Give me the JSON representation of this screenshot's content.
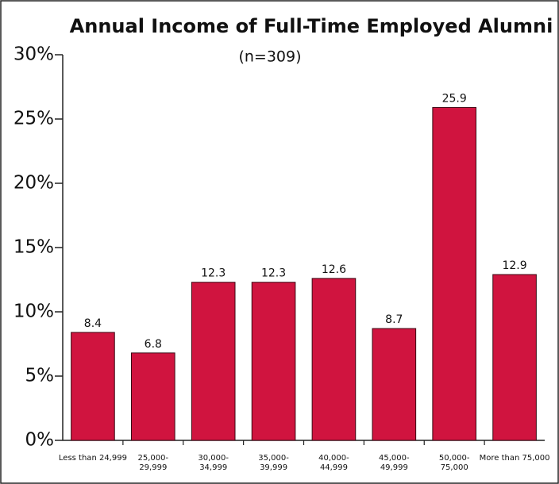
{
  "chart_data": {
    "type": "bar",
    "title": "Annual Income of Full-Time Employed Alumni",
    "subtitle": "(n=309)",
    "categories": [
      "Less than 24,999",
      "25,000-\n29,999",
      "30,000-\n34,999",
      "35,000-\n39,999",
      "40,000-\n44,999",
      "45,000-\n49,999",
      "50,000-\n75,000",
      "More than 75,000"
    ],
    "values": [
      8.4,
      6.8,
      12.3,
      12.3,
      12.6,
      8.7,
      25.9,
      12.9
    ],
    "color": "#d0143f",
    "ylim": [
      0,
      30
    ],
    "yticks": [
      {
        "value": 0,
        "label": "0%"
      },
      {
        "value": 5,
        "label": "5%"
      },
      {
        "value": 10,
        "label": "10%"
      },
      {
        "value": 15,
        "label": "15%"
      },
      {
        "value": 20,
        "label": "20%"
      },
      {
        "value": 25,
        "label": "25%"
      },
      {
        "value": 30,
        "label": "30%"
      }
    ],
    "grid": false
  }
}
